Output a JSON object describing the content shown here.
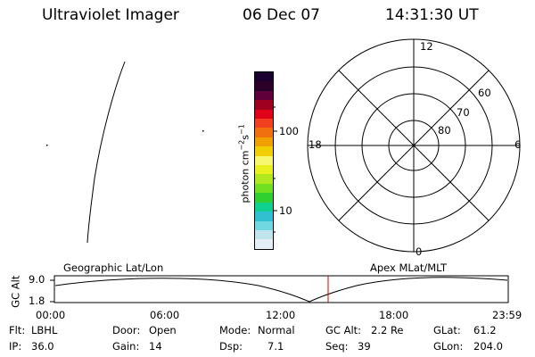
{
  "header": {
    "title": "Ultraviolet Imager",
    "date": "06 Dec 07",
    "time": "14:31:30 UT"
  },
  "colorbar": {
    "unit_label": "photon cm⁻²s⁻¹",
    "unit_base": "photon cm",
    "unit_exp1": "−2",
    "unit_mid": "s",
    "unit_exp2": "−1",
    "tick_100": "100",
    "tick_10": "10",
    "colors": [
      "#1a0030",
      "#2a0028",
      "#60003a",
      "#a00020",
      "#e0001a",
      "#f04020",
      "#f07010",
      "#f0a000",
      "#f0d000",
      "#f8f870",
      "#e8f020",
      "#b0e820",
      "#70e020",
      "#30d030",
      "#10d090",
      "#30c0d0",
      "#70d8e0",
      "#c0e4ee",
      "#e4eef4"
    ]
  },
  "polar_plot": {
    "mlt_12": "12",
    "mlt_6": "6",
    "mlt_18": "18",
    "mlt_0": "0",
    "lat_60": "60",
    "lat_70": "70",
    "lat_80": "80"
  },
  "timeline": {
    "y_label": "GC Alt",
    "y_top": "9.0",
    "y_bottom": "1.8",
    "left_label": "Geographic Lat/Lon",
    "right_label": "Apex MLat/MLT",
    "ticks": [
      "00:00",
      "06:00",
      "12:00",
      "18:00",
      "23:59"
    ],
    "marker_color": "#d00000"
  },
  "status": {
    "flt_label": "Flt:",
    "flt_value": "LBHL",
    "ip_label": "IP:",
    "ip_value": "36.0",
    "door_label": "Door:",
    "door_value": "Open",
    "gain_label": "Gain:",
    "gain_value": "14",
    "mode_label": "Mode:",
    "mode_value": "Normal",
    "dsp_label": "Dsp:",
    "dsp_value": "7.1",
    "gcalt_label": "GC Alt:",
    "gcalt_value": "2.2 Re",
    "seq_label": "Seq:",
    "seq_value": "39",
    "glat_label": "GLat:",
    "glat_value": "61.2",
    "glon_label": "GLon:",
    "glon_value": "204.0"
  }
}
